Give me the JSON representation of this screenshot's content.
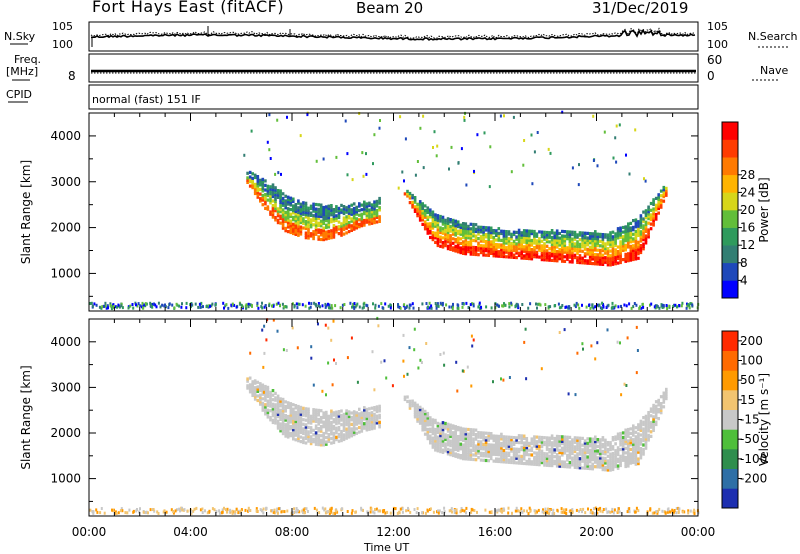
{
  "header": {
    "radar": "Fort Hays East (fitACF)",
    "beam": "Beam 20",
    "date": "31/Dec/2019"
  },
  "noise_panel": {
    "left_label": "N.Sky",
    "right_label": "N.Search",
    "tick_top": "10^5",
    "tick_bottom": "10^0"
  },
  "freq_panel": {
    "left_label_1": "Freq.",
    "left_label_2": "[MHz]",
    "left_tick": "8",
    "right_label": "Nave",
    "right_tick_top": "60",
    "right_tick_bottom": "0"
  },
  "cpid_panel": {
    "label": "CPID",
    "mode_text": "normal (fast) 151 IF"
  },
  "x_axis": {
    "ticks": [
      "00:00",
      "04:00",
      "08:00",
      "12:00",
      "16:00",
      "20:00",
      "00:00"
    ],
    "label": "Time UT"
  },
  "chart_data": [
    {
      "type": "heatmap",
      "name": "Power",
      "xlabel": "Time UT",
      "ylabel": "Slant Range [km]",
      "xlim_hours": [
        0,
        24
      ],
      "ylim_km": [
        180,
        4500
      ],
      "yticks": [
        "1000",
        "2000",
        "3000",
        "4000"
      ],
      "colorbar": {
        "label": "Power [dB]",
        "ticks": [
          "4",
          "8",
          "12",
          "16",
          "20",
          "24",
          "28"
        ],
        "colors": [
          "#0000ff",
          "#1e48ba",
          "#327e73",
          "#2f9a5d",
          "#62be3a",
          "#d7d61a",
          "#ffb400",
          "#ff7a00",
          "#ff3c00",
          "#ff0000"
        ]
      },
      "echo_regions": [
        {
          "start_h": 6.2,
          "end_h": 11.4,
          "bottom_km": [
            2950,
            2350,
            1900,
            1750,
            1700,
            1800,
            2000,
            2100
          ],
          "top_km": [
            3200,
            3000,
            2700,
            2550,
            2450,
            2450,
            2500,
            2600
          ],
          "level": "medium"
        },
        {
          "start_h": 12.4,
          "end_h": 22.8,
          "bottom_km": [
            2700,
            1600,
            1400,
            1350,
            1300,
            1250,
            1200,
            1150,
            1300,
            2800
          ],
          "top_km": [
            2800,
            2300,
            2100,
            1950,
            1900,
            1900,
            1900,
            1850,
            2200,
            3000
          ],
          "level": "strong"
        }
      ]
    },
    {
      "type": "heatmap",
      "name": "Velocity",
      "xlabel": "Time UT",
      "ylabel": "Slant Range [km]",
      "xlim_hours": [
        0,
        24
      ],
      "ylim_km": [
        180,
        4500
      ],
      "yticks": [
        "1000",
        "2000",
        "3000",
        "4000"
      ],
      "colorbar": {
        "label": "Velocity [m s⁻¹]",
        "ticks": [
          "200",
          "100",
          "50",
          "15",
          "-15",
          "-50",
          "-100",
          "-200"
        ],
        "colors": [
          "#1d2fb0",
          "#2e6fa6",
          "#2f8e4e",
          "#4fbf3a",
          "#c8c8c8",
          "#f2c470",
          "#ff9a00",
          "#ff6a00",
          "#ff2a00"
        ]
      }
    }
  ]
}
